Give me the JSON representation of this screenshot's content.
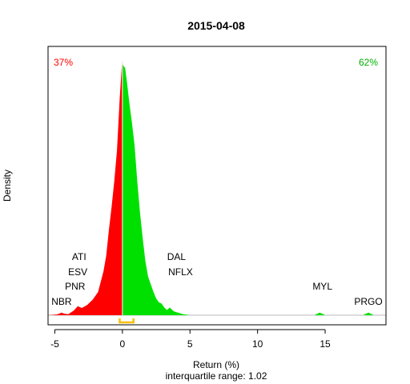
{
  "chart_data": {
    "type": "area",
    "title": "2015-04-08",
    "xlabel": "Return (%)",
    "ylabel": "Density",
    "subtitle": "interquartile range: 1.02",
    "xlim": [
      -5.5,
      19.5
    ],
    "ylim": [
      0,
      1
    ],
    "x_ticks": [
      -5,
      0,
      5,
      10,
      15
    ],
    "grid": false,
    "negative_share_label": "37%",
    "positive_share_label": "62%",
    "colors": {
      "negative": "#ff0000",
      "positive": "#00e000",
      "iqr": "#f5c000",
      "axis": "#000000",
      "baseline": "#bbbbbb"
    },
    "iqr": {
      "low": -0.2,
      "high": 0.82
    },
    "density": [
      [
        -5.5,
        0.0
      ],
      [
        -4.8,
        0.003
      ],
      [
        -4.5,
        0.01
      ],
      [
        -4.3,
        0.006
      ],
      [
        -4.0,
        0.004
      ],
      [
        -3.6,
        0.018
      ],
      [
        -3.3,
        0.035
      ],
      [
        -3.0,
        0.028
      ],
      [
        -2.6,
        0.04
      ],
      [
        -2.2,
        0.06
      ],
      [
        -2.0,
        0.075
      ],
      [
        -1.8,
        0.09
      ],
      [
        -1.6,
        0.13
      ],
      [
        -1.4,
        0.17
      ],
      [
        -1.2,
        0.23
      ],
      [
        -1.0,
        0.33
      ],
      [
        -0.8,
        0.42
      ],
      [
        -0.6,
        0.52
      ],
      [
        -0.4,
        0.64
      ],
      [
        -0.2,
        0.84
      ],
      [
        -0.05,
        0.96
      ],
      [
        0.0,
        1.0
      ],
      [
        0.05,
        0.97
      ],
      [
        0.2,
        0.96
      ],
      [
        0.35,
        0.9
      ],
      [
        0.5,
        0.83
      ],
      [
        0.7,
        0.75
      ],
      [
        0.9,
        0.66
      ],
      [
        1.1,
        0.52
      ],
      [
        1.3,
        0.4
      ],
      [
        1.5,
        0.3
      ],
      [
        1.7,
        0.21
      ],
      [
        1.9,
        0.15
      ],
      [
        2.1,
        0.12
      ],
      [
        2.3,
        0.09
      ],
      [
        2.5,
        0.065
      ],
      [
        2.7,
        0.05
      ],
      [
        2.9,
        0.045
      ],
      [
        3.1,
        0.03
      ],
      [
        3.3,
        0.02
      ],
      [
        3.5,
        0.03
      ],
      [
        3.8,
        0.015
      ],
      [
        4.1,
        0.01
      ],
      [
        4.5,
        0.004
      ],
      [
        5.0,
        0.0
      ],
      [
        14.2,
        0.0
      ],
      [
        14.6,
        0.01
      ],
      [
        15.0,
        0.0
      ],
      [
        17.8,
        0.0
      ],
      [
        18.2,
        0.01
      ],
      [
        18.6,
        0.0
      ],
      [
        19.5,
        0.0
      ]
    ],
    "annotations": [
      {
        "label": "ATI",
        "x": -3.2,
        "y": 0.215
      },
      {
        "label": "ESV",
        "x": -3.3,
        "y": 0.155
      },
      {
        "label": "PNR",
        "x": -3.5,
        "y": 0.1
      },
      {
        "label": "NBR",
        "x": -4.5,
        "y": 0.04
      },
      {
        "label": "DAL",
        "x": 4.0,
        "y": 0.215
      },
      {
        "label": "NFLX",
        "x": 4.3,
        "y": 0.155
      },
      {
        "label": "MYL",
        "x": 14.8,
        "y": 0.1
      },
      {
        "label": "PRGO",
        "x": 18.2,
        "y": 0.04
      }
    ]
  }
}
